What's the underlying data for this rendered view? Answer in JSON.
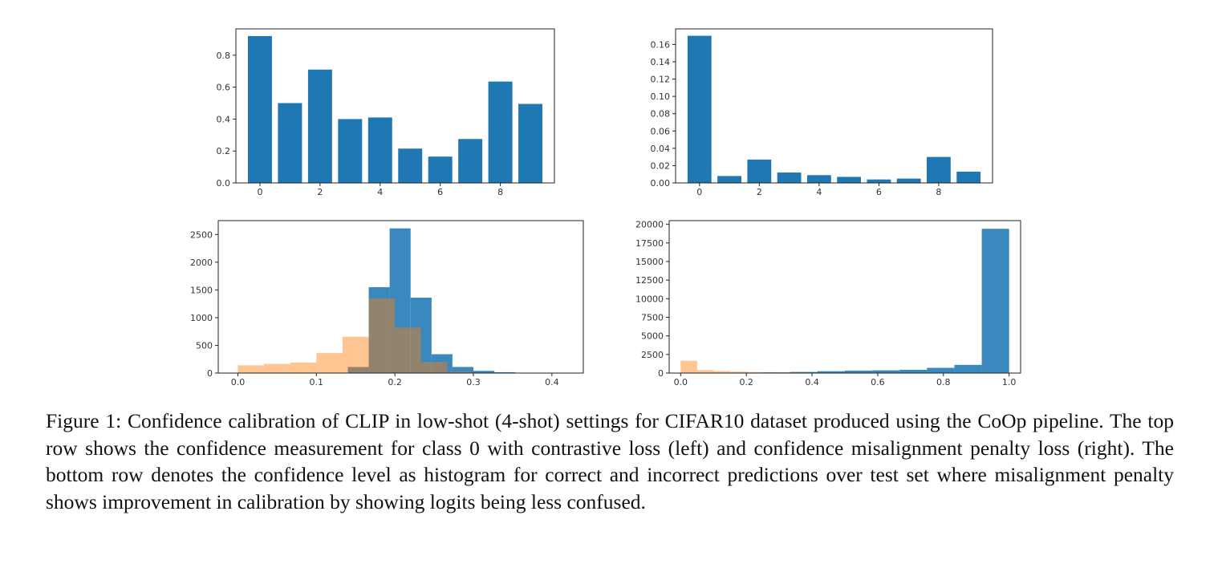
{
  "chart_data": [
    {
      "type": "bar",
      "title": "",
      "xlabel": "",
      "ylabel": "",
      "categories": [
        0,
        1,
        2,
        3,
        4,
        5,
        6,
        7,
        8,
        9
      ],
      "values": [
        0.92,
        0.5,
        0.71,
        0.4,
        0.41,
        0.215,
        0.165,
        0.275,
        0.635,
        0.495
      ],
      "ylim": [
        0,
        0.965
      ],
      "xlim": [
        -0.8,
        9.8
      ],
      "xticks": [
        "0",
        "2",
        "4",
        "6",
        "8"
      ],
      "yticks": [
        "0.0",
        "0.2",
        "0.4",
        "0.6",
        "0.8"
      ],
      "colors": {
        "bar": "#1f77b4"
      },
      "grid": false
    },
    {
      "type": "bar",
      "title": "",
      "xlabel": "",
      "ylabel": "",
      "categories": [
        0,
        1,
        2,
        3,
        4,
        5,
        6,
        7,
        8,
        9
      ],
      "values": [
        0.17,
        0.008,
        0.027,
        0.012,
        0.009,
        0.007,
        0.004,
        0.005,
        0.03,
        0.013
      ],
      "ylim": [
        0,
        0.178
      ],
      "xlim": [
        -0.8,
        9.8
      ],
      "xticks": [
        "0",
        "2",
        "4",
        "6",
        "8"
      ],
      "yticks": [
        "0.00",
        "0.02",
        "0.04",
        "0.06",
        "0.08",
        "0.10",
        "0.12",
        "0.14",
        "0.16"
      ],
      "colors": {
        "bar": "#1f77b4"
      },
      "grid": false
    },
    {
      "type": "histogram",
      "title": "",
      "xlabel": "",
      "ylabel": "",
      "xlim": [
        -0.025,
        0.44
      ],
      "ylim": [
        0,
        2750
      ],
      "xticks": [
        "0.0",
        "0.1",
        "0.2",
        "0.3",
        "0.4"
      ],
      "yticks": [
        "0",
        "500",
        "1000",
        "1500",
        "2000",
        "2500"
      ],
      "grid": false,
      "series": [
        {
          "name": "correct",
          "color": "#1f77b4",
          "opacity": 0.88,
          "edges": [
            0.14,
            0.1667,
            0.1933,
            0.22,
            0.2467,
            0.2733,
            0.3,
            0.3267,
            0.3533,
            0.38,
            0.4067
          ],
          "counts": [
            110,
            1550,
            2610,
            1360,
            340,
            110,
            40,
            15,
            5,
            2
          ]
        },
        {
          "name": "incorrect",
          "color": "#ff7f0e",
          "opacity": 0.45,
          "edges": [
            0.0,
            0.0333,
            0.0667,
            0.1,
            0.1333,
            0.1667,
            0.2,
            0.2333,
            0.2667,
            0.3
          ],
          "counts": [
            140,
            165,
            190,
            360,
            655,
            1345,
            820,
            200,
            25
          ]
        }
      ]
    },
    {
      "type": "histogram",
      "title": "",
      "xlabel": "",
      "ylabel": "",
      "xlim": [
        -0.035,
        1.035
      ],
      "ylim": [
        0,
        20500
      ],
      "xticks": [
        "0.0",
        "0.2",
        "0.4",
        "0.6",
        "0.8",
        "1.0"
      ],
      "yticks": [
        "0",
        "2500",
        "5000",
        "7500",
        "10000",
        "12500",
        "15000",
        "17500",
        "20000"
      ],
      "grid": false,
      "series": [
        {
          "name": "correct",
          "color": "#1f77b4",
          "opacity": 0.88,
          "edges": [
            0.0,
            0.0833,
            0.1667,
            0.25,
            0.3333,
            0.4167,
            0.5,
            0.5833,
            0.6667,
            0.75,
            0.8333,
            0.9167,
            1.0
          ],
          "counts": [
            20,
            40,
            60,
            90,
            150,
            250,
            330,
            370,
            440,
            700,
            1100,
            19400
          ]
        },
        {
          "name": "incorrect",
          "color": "#ff7f0e",
          "opacity": 0.45,
          "edges": [
            0.0,
            0.05,
            0.1,
            0.15,
            0.2,
            0.25,
            0.3,
            0.35,
            0.4,
            0.45,
            0.5,
            0.55
          ],
          "counts": [
            1650,
            400,
            280,
            200,
            150,
            120,
            90,
            70,
            50,
            40,
            30
          ]
        }
      ]
    }
  ],
  "caption": {
    "text": "Figure 1: Confidence calibration of CLIP in low-shot (4-shot) settings for CIFAR10 dataset produced using the CoOp pipeline.  The top row shows the confidence measurement for class 0 with contrastive loss (left) and confidence misalignment penalty loss (right). The bottom row denotes the confidence level as histogram for correct and incorrect predictions over test set where misalignment penalty shows improvement in calibration by showing logits being less confused."
  }
}
